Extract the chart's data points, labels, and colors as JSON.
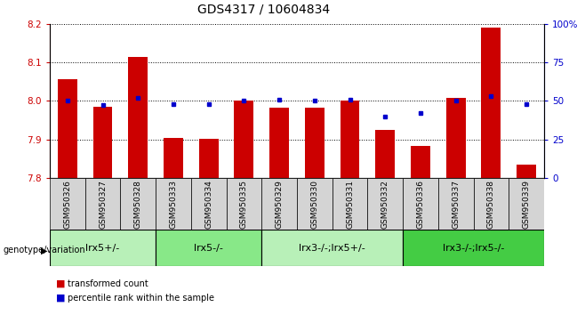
{
  "title": "GDS4317 / 10604834",
  "samples": [
    "GSM950326",
    "GSM950327",
    "GSM950328",
    "GSM950333",
    "GSM950334",
    "GSM950335",
    "GSM950329",
    "GSM950330",
    "GSM950331",
    "GSM950332",
    "GSM950336",
    "GSM950337",
    "GSM950338",
    "GSM950339"
  ],
  "red_values": [
    8.055,
    7.985,
    8.113,
    7.903,
    7.902,
    8.0,
    7.982,
    7.982,
    8.0,
    7.924,
    7.883,
    8.007,
    8.19,
    7.835
  ],
  "blue_values": [
    50,
    47,
    52,
    48,
    48,
    50,
    51,
    50,
    51,
    40,
    42,
    50,
    53,
    48
  ],
  "ylim_left": [
    7.8,
    8.2
  ],
  "ylim_right": [
    0,
    100
  ],
  "yticks_left": [
    7.8,
    7.9,
    8.0,
    8.1,
    8.2
  ],
  "yticks_right": [
    0,
    25,
    50,
    75,
    100
  ],
  "ytick_labels_right": [
    "0",
    "25",
    "50",
    "75",
    "100%"
  ],
  "groups": [
    {
      "label": "lrx5+/-",
      "start": 0,
      "end": 3,
      "color": "#b8f0b8"
    },
    {
      "label": "lrx5-/-",
      "start": 3,
      "end": 6,
      "color": "#88e888"
    },
    {
      "label": "lrx3-/-;lrx5+/-",
      "start": 6,
      "end": 10,
      "color": "#b8f0b8"
    },
    {
      "label": "lrx3-/-;lrx5-/-",
      "start": 10,
      "end": 14,
      "color": "#44cc44"
    }
  ],
  "bar_color": "#cc0000",
  "dot_color": "#0000cc",
  "bar_width": 0.55,
  "genotype_label": "genotype/variation",
  "legend_red": "transformed count",
  "legend_blue": "percentile rank within the sample",
  "left_axis_color": "#cc0000",
  "right_axis_color": "#0000cc",
  "title_fontsize": 10,
  "tick_fontsize": 7.5,
  "sample_fontsize": 6.5,
  "group_label_fontsize": 8,
  "legend_fontsize": 7,
  "genotype_fontsize": 7
}
